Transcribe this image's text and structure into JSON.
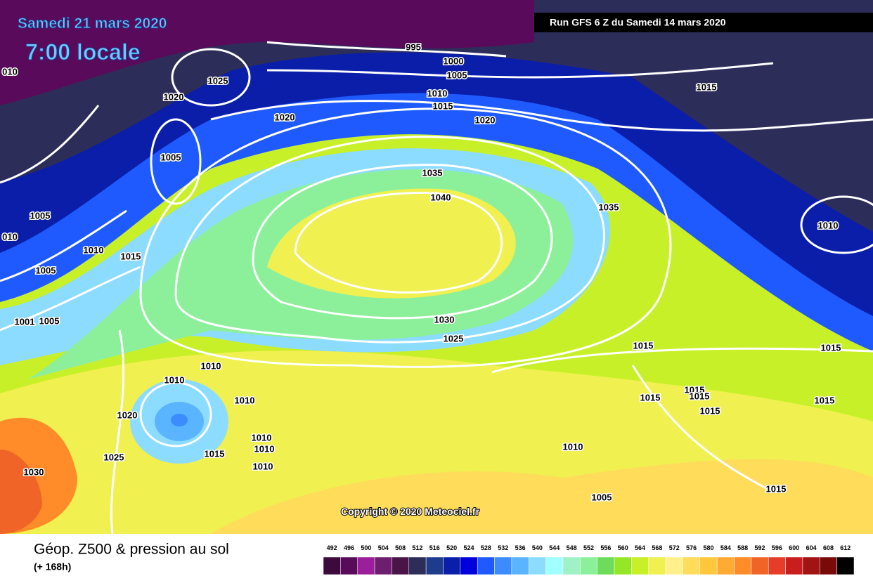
{
  "header": {
    "date": "Samedi 21 mars 2020",
    "time": "7:00 locale",
    "run": "Run GFS 6 Z du Samedi 14 mars 2020"
  },
  "copyright": "Copyright © 2020 Meteociel.fr",
  "isobar_labels": [
    "995",
    "1000",
    "1005",
    "1010",
    "1015",
    "1020",
    "1015",
    "1025",
    "1020",
    "1020",
    "1005",
    "1035",
    "1040",
    "1035",
    "1010",
    "010",
    "1005",
    "010",
    "1010",
    "1015",
    "1005",
    "1001",
    "1005",
    "1030",
    "1025",
    "1015",
    "1015",
    "1010",
    "1010",
    "1010",
    "1020",
    "1015",
    "1015",
    "1015",
    "1015",
    "1015",
    "1010",
    "1010",
    "1015",
    "1010",
    "1025",
    "1030",
    "1010",
    "1015",
    "1005"
  ],
  "legend": {
    "title": "Géop. Z500 & pression au sol",
    "subtitle": "(+ 168h)",
    "levels": [
      492,
      496,
      500,
      504,
      508,
      512,
      516,
      520,
      524,
      528,
      532,
      536,
      540,
      544,
      548,
      552,
      556,
      560,
      564,
      568,
      572,
      576,
      580,
      584,
      588,
      592,
      596,
      600,
      604,
      608,
      612
    ],
    "colors": [
      "#3c0a3c",
      "#5a0a5a",
      "#9b1e9b",
      "#6e1e6e",
      "#4b1448",
      "#2d2d5a",
      "#1e3c8c",
      "#0a1eaa",
      "#0000dc",
      "#1e5aff",
      "#3c8cff",
      "#5ab4ff",
      "#8cdcff",
      "#a0ffff",
      "#a0f0c8",
      "#8cf09b",
      "#6edc5a",
      "#96e628",
      "#c8f028",
      "#f0f050",
      "#fff08c",
      "#ffdc5a",
      "#ffc83c",
      "#ffaa32",
      "#ff8c28",
      "#f06428",
      "#e63c28",
      "#c81e1e",
      "#a01414",
      "#780a0a",
      "#000000"
    ]
  }
}
